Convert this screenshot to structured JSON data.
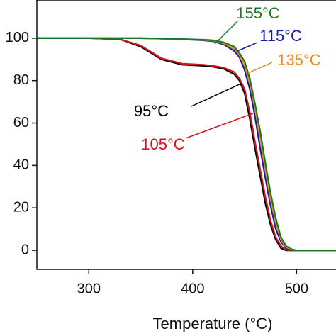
{
  "chart_data": {
    "type": "line",
    "xlabel": "Temperature (°C)",
    "x": [
      250,
      300,
      330,
      350,
      370,
      390,
      410,
      420,
      430,
      440,
      445,
      450,
      455,
      460,
      465,
      470,
      475,
      480,
      485,
      490,
      495,
      500,
      540
    ],
    "series": [
      {
        "name": "95°C",
        "color": "#000000",
        "values": [
          100,
          100,
          99.5,
          96,
          90,
          87.5,
          87,
          86.5,
          85.5,
          83,
          80,
          74,
          62,
          48,
          35,
          22,
          12,
          5,
          1,
          0,
          0,
          0,
          0
        ]
      },
      {
        "name": "105°C",
        "color": "#d4141c",
        "values": [
          100,
          100,
          99.5,
          96.5,
          90.5,
          88,
          87.5,
          87,
          86,
          84,
          81,
          76,
          65,
          51,
          38,
          25,
          14,
          6,
          2,
          0.3,
          0,
          0,
          0
        ]
      },
      {
        "name": "115°C",
        "color": "#1a1aa8",
        "values": [
          100,
          100,
          100,
          100,
          99.8,
          99.5,
          99,
          98.5,
          97,
          94,
          91,
          85,
          76,
          63,
          48,
          34,
          21,
          10,
          4,
          1,
          0,
          0,
          0
        ]
      },
      {
        "name": "135°C",
        "color": "#f08a12",
        "values": [
          100,
          100,
          100,
          100,
          99.8,
          99.5,
          99.2,
          98.8,
          97.5,
          95,
          92,
          87,
          79,
          67,
          53,
          38,
          24,
          13,
          5,
          1.5,
          0.3,
          0,
          0
        ]
      },
      {
        "name": "155°C",
        "color": "#1e7a1e",
        "values": [
          100,
          100,
          100,
          100,
          99.8,
          99.6,
          99.3,
          99,
          98,
          96,
          93,
          89,
          81,
          69,
          56,
          41,
          27,
          15,
          6,
          2,
          0.5,
          0,
          0
        ]
      }
    ],
    "xlim": [
      250,
      540
    ],
    "ylim": [
      -9,
      118
    ],
    "xticks": [
      300,
      400,
      500
    ],
    "yticks": [
      0,
      20,
      40,
      60,
      80,
      100
    ]
  }
}
